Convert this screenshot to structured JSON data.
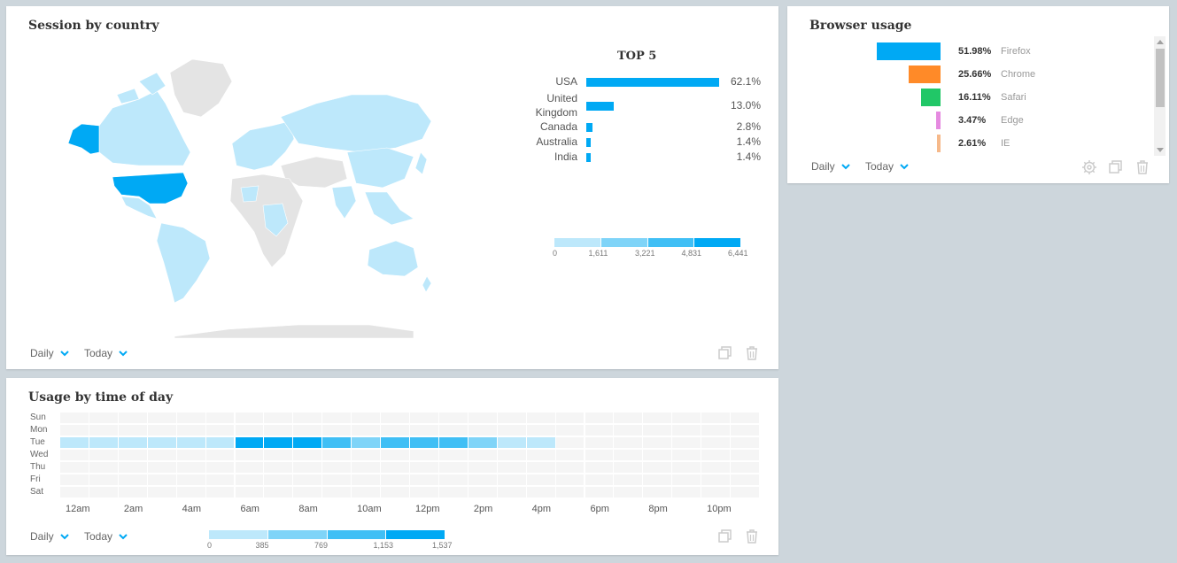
{
  "map_card": {
    "title": "Session by country",
    "top5_title": "TOP 5",
    "top5": [
      {
        "country": "USA",
        "pct": "62.1%",
        "value": 62.1
      },
      {
        "country": "United Kingdom",
        "pct": "13.0%",
        "value": 13.0
      },
      {
        "country": "Canada",
        "pct": "2.8%",
        "value": 2.8
      },
      {
        "country": "Australia",
        "pct": "1.4%",
        "value": 1.4
      },
      {
        "country": "India",
        "pct": "1.4%",
        "value": 1.4
      }
    ],
    "legend_ticks": [
      "0",
      "1,611",
      "3,221",
      "4,831",
      "6,441"
    ],
    "legend_colors": [
      "#bde8fb",
      "#7fd4f8",
      "#40bff5",
      "#00a9f4"
    ],
    "map_colors": {
      "highlight": "#00a9f4",
      "low": "#bde8fb",
      "none": "#e4e4e4"
    },
    "interval_dropdown": "Daily",
    "range_dropdown": "Today"
  },
  "browser_card": {
    "title": "Browser usage",
    "browsers": [
      {
        "name": "Firefox",
        "pct": "51.98%",
        "value": 51.98,
        "color": "#00a9f4"
      },
      {
        "name": "Chrome",
        "pct": "25.66%",
        "value": 25.66,
        "color": "#ff8a28"
      },
      {
        "name": "Safari",
        "pct": "16.11%",
        "value": 16.11,
        "color": "#21c767"
      },
      {
        "name": "Edge",
        "pct": "3.47%",
        "value": 3.47,
        "color": "#e58ae0"
      },
      {
        "name": "IE",
        "pct": "2.61%",
        "value": 2.61,
        "color": "#f6b98a"
      }
    ],
    "interval_dropdown": "Daily",
    "range_dropdown": "Today"
  },
  "time_card": {
    "title": "Usage by time of day",
    "days": [
      "Sun",
      "Mon",
      "Tue",
      "Wed",
      "Thu",
      "Fri",
      "Sat"
    ],
    "hour_labels": [
      "12am",
      "2am",
      "4am",
      "6am",
      "8am",
      "10am",
      "12pm",
      "2pm",
      "4pm",
      "6pm",
      "8pm",
      "10pm"
    ],
    "tuesday_levels": [
      1,
      1,
      1,
      1,
      1,
      1,
      4,
      4,
      4,
      3,
      2,
      3,
      3,
      3,
      2,
      1,
      1,
      0,
      0,
      0,
      0,
      0,
      0,
      0
    ],
    "legend_ticks": [
      "0",
      "385",
      "769",
      "1,153",
      "1,537"
    ],
    "legend_colors": [
      "#bde8fb",
      "#7fd4f8",
      "#40bff5",
      "#00a9f4"
    ],
    "interval_dropdown": "Daily",
    "range_dropdown": "Today"
  }
}
